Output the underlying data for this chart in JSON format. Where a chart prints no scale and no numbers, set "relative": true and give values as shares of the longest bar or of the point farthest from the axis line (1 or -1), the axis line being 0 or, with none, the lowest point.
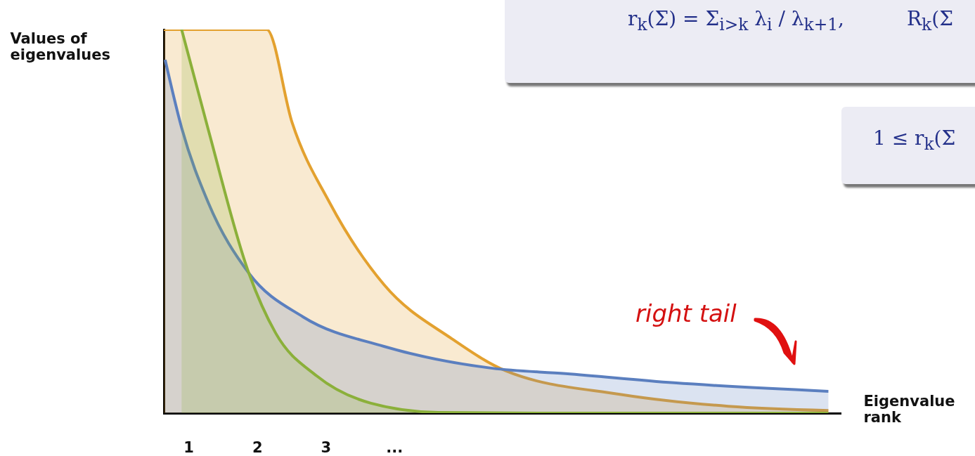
{
  "chart_data": {
    "type": "area",
    "relative": true,
    "xlabel": "Eigenvalue rank",
    "ylabel": "Values of eigenvalues",
    "xlim": [
      0.64,
      10.5
    ],
    "xticks": [
      1,
      2,
      3,
      {
        "value": 4,
        "label": "..."
      }
    ],
    "grid": false,
    "series": [
      {
        "color": "#e3a12f",
        "x": [
          0.64,
          2.14,
          2.51,
          3.06,
          3.85,
          4.84,
          5.63,
          7.29,
          8.87,
          10.33
        ],
        "values": [
          1,
          1,
          0.758,
          0.548,
          0.335,
          0.194,
          0.11,
          0.049,
          0.018,
          0.007
        ]
      },
      {
        "color": "#5b7fbf",
        "x": [
          0.66,
          0.9,
          1.29,
          1.88,
          2.67,
          3.85,
          5.43,
          6.5,
          8.08,
          10.33
        ],
        "values": [
          0.921,
          0.744,
          0.548,
          0.365,
          0.251,
          0.174,
          0.117,
          0.103,
          0.079,
          0.057
        ]
      },
      {
        "color": "#8bb03a",
        "x": [
          0.9,
          1.29,
          1.88,
          2.27,
          2.87,
          3.66,
          4.64,
          6.5,
          10.33
        ],
        "values": [
          1,
          0.738,
          0.365,
          0.209,
          0.097,
          0.026,
          0.002,
          0,
          0
        ]
      }
    ],
    "annotations": [
      "r$_{k}$(Σ) = Σ$_{i>k}$ λ$_{i}$ / λ$_{k+1}$,",
      "R$_{k}$(Σ",
      "1 ≤ r$_{k}$(Σ",
      "right tail"
    ]
  }
}
